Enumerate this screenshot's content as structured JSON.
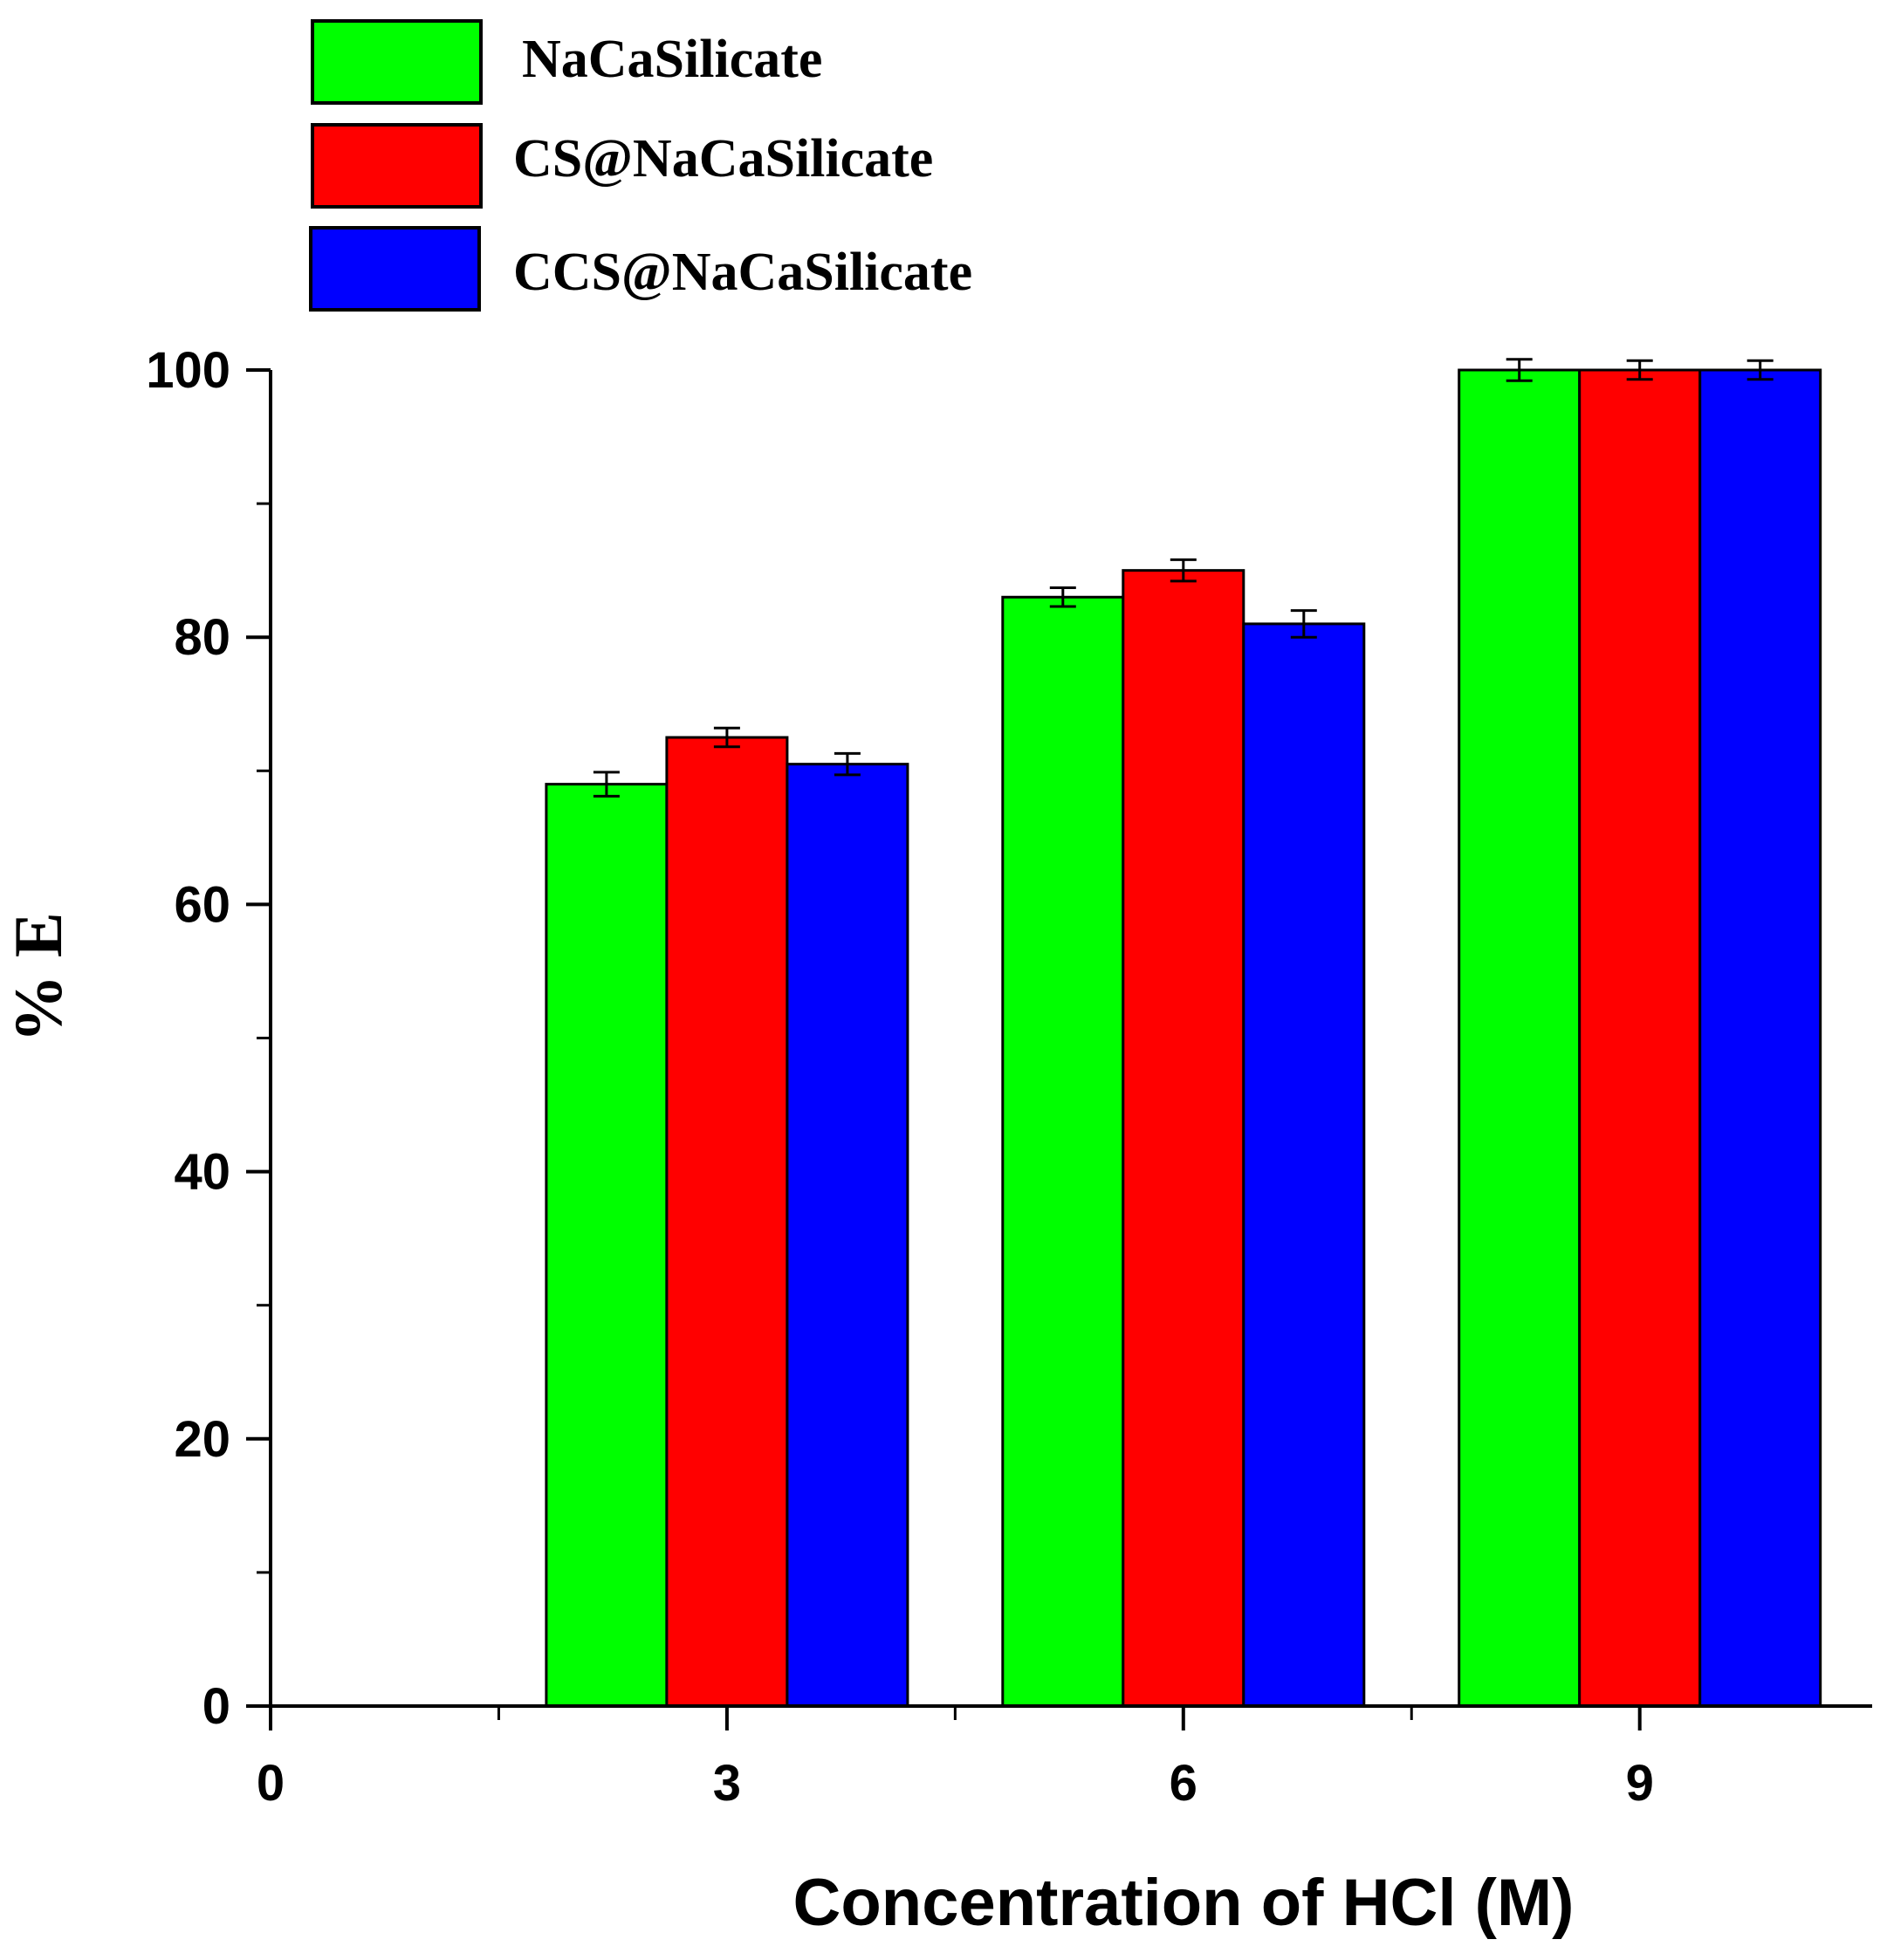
{
  "chart_data": {
    "type": "bar",
    "title": "",
    "xlabel": "Concentration of HCl (M)",
    "ylabel": "% E",
    "x_ticks": [
      "0",
      "3",
      "6",
      "9"
    ],
    "x_tick_values": [
      0,
      3,
      6,
      9
    ],
    "xlim": [
      0,
      10.5
    ],
    "ylim": [
      0,
      100
    ],
    "y_ticks": [
      "0",
      "20",
      "40",
      "60",
      "80",
      "100"
    ],
    "y_tick_values": [
      0,
      20,
      40,
      60,
      80,
      100
    ],
    "y_minor_step": 10,
    "grid": false,
    "legend_position": "top-left",
    "categories": [
      "3",
      "6",
      "9"
    ],
    "series": [
      {
        "name": "NaCaSilicate",
        "color": "#00ff00",
        "values": [
          69,
          83,
          100
        ],
        "errors": [
          0.9,
          0.7,
          0.8
        ]
      },
      {
        "name": "CS@NaCaSilicate",
        "color": "#ff0000",
        "values": [
          72.5,
          85,
          100
        ],
        "errors": [
          0.7,
          0.8,
          0.7
        ]
      },
      {
        "name": "CCS@NaCaSilicate",
        "color": "#0000ff",
        "values": [
          70.5,
          81,
          100
        ],
        "errors": [
          0.8,
          1.0,
          0.7
        ]
      }
    ]
  }
}
